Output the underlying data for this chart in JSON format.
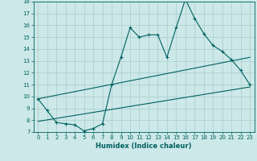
{
  "title": "",
  "xlabel": "Humidex (Indice chaleur)",
  "xlim": [
    -0.5,
    23.5
  ],
  "ylim": [
    7,
    18
  ],
  "xticks": [
    0,
    1,
    2,
    3,
    4,
    5,
    6,
    7,
    8,
    9,
    10,
    11,
    12,
    13,
    14,
    15,
    16,
    17,
    18,
    19,
    20,
    21,
    22,
    23
  ],
  "yticks": [
    7,
    8,
    9,
    10,
    11,
    12,
    13,
    14,
    15,
    16,
    17,
    18
  ],
  "bg_color": "#cce8e8",
  "grid_color": "#aacccc",
  "line_color": "#006060",
  "line1_x": [
    0,
    1,
    2,
    3,
    4,
    5,
    6,
    7,
    8,
    9,
    10,
    11,
    12,
    13,
    14,
    15,
    16,
    17,
    18,
    19,
    20,
    21,
    22,
    23
  ],
  "line1_y": [
    9.8,
    8.8,
    7.8,
    7.7,
    7.6,
    7.1,
    7.3,
    7.7,
    11.0,
    13.3,
    15.8,
    15.0,
    15.2,
    15.2,
    13.3,
    15.8,
    18.2,
    16.6,
    15.3,
    14.3,
    13.8,
    13.1,
    12.2,
    11.0
  ],
  "line2_x": [
    0,
    23
  ],
  "line2_y": [
    7.9,
    10.8
  ],
  "line3_x": [
    0,
    23
  ],
  "line3_y": [
    9.8,
    13.3
  ]
}
